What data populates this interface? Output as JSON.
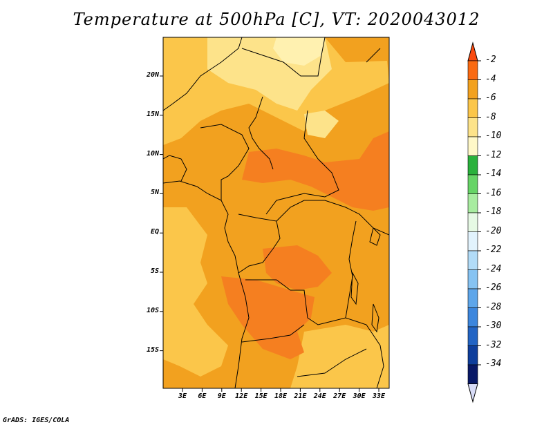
{
  "title": "Temperature at 500hPa [C], VT: 2020043012",
  "credit": "GrADS: IGES/COLA",
  "map": {
    "lat_labels": [
      "20N",
      "15N",
      "10N",
      "5N",
      "EQ",
      "5S",
      "10S",
      "15S"
    ],
    "lon_labels": [
      "3E",
      "6E",
      "9E",
      "12E",
      "15E",
      "18E",
      "21E",
      "24E",
      "27E",
      "30E",
      "33E"
    ],
    "colors": {
      "base": "#f2a11f",
      "warm": "#f57f20",
      "cool1": "#fbc64a",
      "cool2": "#fde38a",
      "cool3": "#fff1b0"
    }
  },
  "colorbar": {
    "labels": [
      "-2",
      "-4",
      "-6",
      "-8",
      "-10",
      "-12",
      "-14",
      "-16",
      "-18",
      "-20",
      "-22",
      "-24",
      "-26",
      "-28",
      "-30",
      "-32",
      "-34"
    ],
    "colors": [
      "#fa4a0f",
      "#fa6a12",
      "#f2a11f",
      "#fbc64a",
      "#fde38a",
      "#fff8c8",
      "#2ab13c",
      "#66d466",
      "#a8eca0",
      "#e6f9e4",
      "#e2f3fd",
      "#b2dcf8",
      "#86c3f2",
      "#5ea6ea",
      "#3c86dd",
      "#2264c4",
      "#0e3e9c",
      "#081866",
      "#d8dcf8"
    ]
  }
}
